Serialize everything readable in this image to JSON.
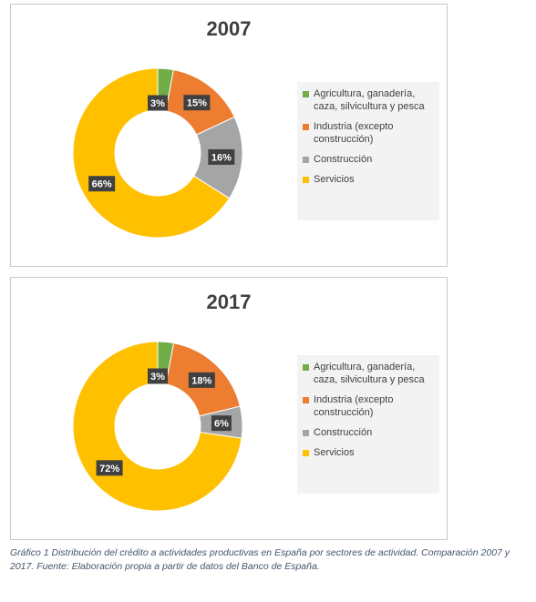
{
  "colors": {
    "agricultura": "#70ad47",
    "industria": "#ed7d31",
    "construccion": "#a5a5a5",
    "servicios": "#ffc000",
    "label_box": "#404040"
  },
  "chart_data": [
    {
      "type": "pie",
      "subtype": "donut",
      "title": "2007",
      "categories": [
        "Agricultura, ganadería, caza, silvicultura y pesca",
        "Industria (excepto construcción)",
        "Construcción",
        "Servicios"
      ],
      "values": [
        3,
        15,
        16,
        66
      ],
      "data_labels": [
        "3%",
        "15%",
        "16%",
        "66%"
      ],
      "legend_position": "right"
    },
    {
      "type": "pie",
      "subtype": "donut",
      "title": "2017",
      "categories": [
        "Agricultura, ganadería, caza, silvicultura y pesca",
        "Industria (excepto construcción)",
        "Construcción",
        "Servicios"
      ],
      "values": [
        3,
        18,
        6,
        72
      ],
      "data_labels": [
        "3%",
        "18%",
        "6%",
        "72%"
      ],
      "legend_position": "right"
    }
  ],
  "caption": "Gráfico 1 Distribución del crédito a actividades productivas en España por sectores de actividad. Comparación 2007 y 2017. Fuente: Elaboración propia a partir de datos del Banco de España."
}
